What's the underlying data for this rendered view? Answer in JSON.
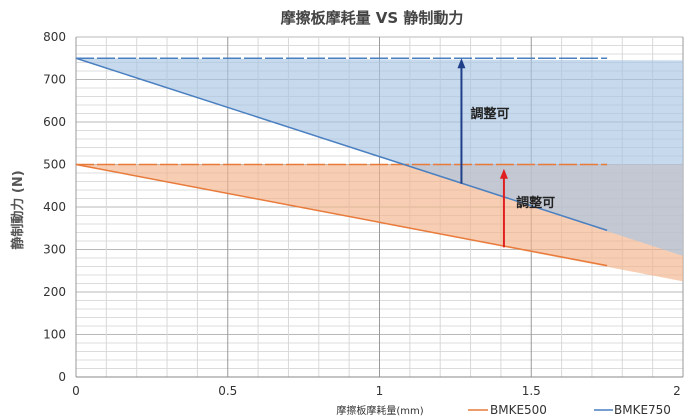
{
  "chart_data": {
    "type": "line",
    "title": "摩擦板摩耗量 VS 静制動力",
    "xlabel": "摩擦板摩耗量(mm)",
    "ylabel": "静制動力 (N)",
    "xlim": [
      0,
      2
    ],
    "ylim": [
      0,
      800
    ],
    "x_ticks": [
      "0",
      "0.5",
      "1",
      "1.5",
      "2"
    ],
    "y_ticks": [
      "0",
      "100",
      "200",
      "300",
      "400",
      "500",
      "600",
      "700",
      "800"
    ],
    "grid": true,
    "legend_position": "bottom-right",
    "series": [
      {
        "name": "BMKE500",
        "color": "#e87a3a",
        "fill": "#f2b48a",
        "max_line": [
          [
            0,
            500
          ],
          [
            1.75,
            500
          ]
        ],
        "decline_line": [
          [
            0,
            500
          ],
          [
            1.75,
            262
          ]
        ],
        "region_top": [
          [
            0,
            500
          ],
          [
            2,
            500
          ]
        ],
        "region_bottom": [
          [
            0,
            500
          ],
          [
            2,
            225
          ]
        ]
      },
      {
        "name": "BMKE750",
        "color": "#4a7fc0",
        "fill": "#a8c4e4",
        "max_line": [
          [
            0,
            750
          ],
          [
            1.75,
            750
          ]
        ],
        "decline_line": [
          [
            0,
            750
          ],
          [
            1.75,
            345
          ]
        ],
        "region_top": [
          [
            0,
            750
          ],
          [
            2,
            745
          ]
        ],
        "region_bottom": [
          [
            0,
            750
          ],
          [
            2,
            285
          ]
        ]
      }
    ],
    "annotations": [
      {
        "text": "調整可",
        "arrow_x": 1.27,
        "arrow_from": 455,
        "arrow_to": 750,
        "color": "#1f3f8a",
        "label_x": 1.3,
        "label_y": 610
      },
      {
        "text": "調整可",
        "arrow_x": 1.41,
        "arrow_from": 305,
        "arrow_to": 490,
        "color": "#e02020",
        "label_x": 1.45,
        "label_y": 400
      }
    ]
  }
}
